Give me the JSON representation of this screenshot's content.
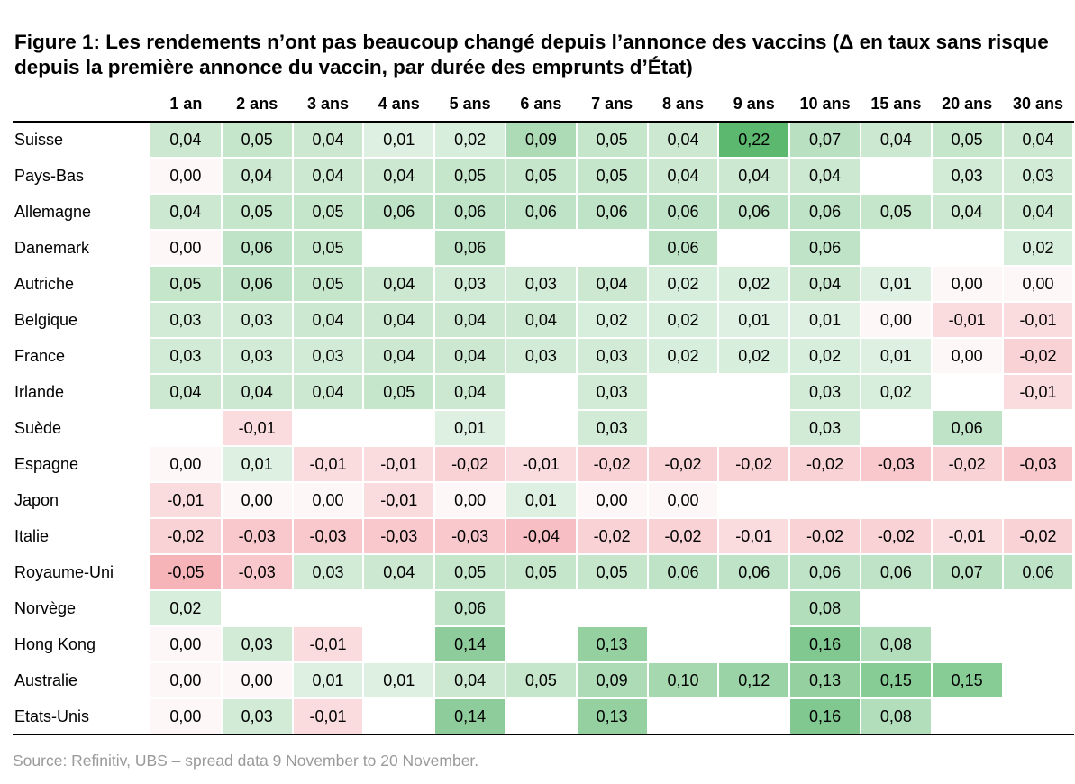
{
  "chart_data": {
    "type": "heatmap",
    "title": "Figure 1: Les rendements n’ont pas beaucoup changé depuis l’annonce des vaccins (Δ en taux sans risque depuis la première annonce du vaccin, par durée des emprunts d’État)",
    "source": "Source: Refinitiv, UBS – spread data 9 November to 20 November.",
    "columns": [
      "1 an",
      "2 ans",
      "3 ans",
      "4 ans",
      "5 ans",
      "6 ans",
      "7 ans",
      "8 ans",
      "9 ans",
      "10 ans",
      "15 ans",
      "20 ans",
      "30 ans"
    ],
    "rows": [
      {
        "label": "Suisse",
        "values": [
          0.04,
          0.05,
          0.04,
          0.01,
          0.02,
          0.09,
          0.05,
          0.04,
          0.22,
          0.07,
          0.04,
          0.05,
          0.04
        ]
      },
      {
        "label": "Pays-Bas",
        "values": [
          0.0,
          0.04,
          0.04,
          0.04,
          0.05,
          0.05,
          0.05,
          0.04,
          0.04,
          0.04,
          null,
          0.03,
          0.03
        ]
      },
      {
        "label": "Allemagne",
        "values": [
          0.04,
          0.05,
          0.05,
          0.06,
          0.06,
          0.06,
          0.06,
          0.06,
          0.06,
          0.06,
          0.05,
          0.04,
          0.04
        ]
      },
      {
        "label": "Danemark",
        "values": [
          0.0,
          0.06,
          0.05,
          null,
          0.06,
          null,
          null,
          0.06,
          null,
          0.06,
          null,
          null,
          0.02
        ]
      },
      {
        "label": "Autriche",
        "values": [
          0.05,
          0.06,
          0.05,
          0.04,
          0.03,
          0.03,
          0.04,
          0.02,
          0.02,
          0.04,
          0.01,
          0.0,
          0.0
        ]
      },
      {
        "label": "Belgique",
        "values": [
          0.03,
          0.03,
          0.04,
          0.04,
          0.04,
          0.04,
          0.02,
          0.02,
          0.01,
          0.01,
          0.0,
          -0.01,
          -0.01
        ]
      },
      {
        "label": "France",
        "values": [
          0.03,
          0.03,
          0.03,
          0.04,
          0.04,
          0.03,
          0.03,
          0.02,
          0.02,
          0.02,
          0.01,
          0.0,
          -0.02
        ]
      },
      {
        "label": "Irlande",
        "values": [
          0.04,
          0.04,
          0.04,
          0.05,
          0.04,
          null,
          0.03,
          null,
          null,
          0.03,
          0.02,
          null,
          -0.01
        ]
      },
      {
        "label": "Suède",
        "values": [
          null,
          -0.01,
          null,
          null,
          0.01,
          null,
          0.03,
          null,
          null,
          0.03,
          null,
          0.06,
          null
        ]
      },
      {
        "label": "Espagne",
        "values": [
          0.0,
          0.01,
          -0.01,
          -0.01,
          -0.02,
          -0.01,
          -0.02,
          -0.02,
          -0.02,
          -0.02,
          -0.03,
          -0.02,
          -0.03
        ]
      },
      {
        "label": "Japon",
        "values": [
          -0.01,
          0.0,
          0.0,
          -0.01,
          0.0,
          0.01,
          0.0,
          0.0,
          null,
          null,
          null,
          null,
          null
        ]
      },
      {
        "label": "Italie",
        "values": [
          -0.02,
          -0.03,
          -0.03,
          -0.03,
          -0.03,
          -0.04,
          -0.02,
          -0.02,
          -0.01,
          -0.02,
          -0.02,
          -0.01,
          -0.02
        ]
      },
      {
        "label": "Royaume-Uni",
        "values": [
          -0.05,
          -0.03,
          0.03,
          0.04,
          0.05,
          0.05,
          0.05,
          0.06,
          0.06,
          0.06,
          0.06,
          0.07,
          0.06
        ]
      },
      {
        "label": "Norvège",
        "values": [
          0.02,
          null,
          null,
          null,
          0.06,
          null,
          null,
          null,
          null,
          0.08,
          null,
          null,
          null
        ]
      },
      {
        "label": "Hong Kong",
        "values": [
          0.0,
          0.03,
          -0.01,
          null,
          0.14,
          null,
          0.13,
          null,
          null,
          0.16,
          0.08,
          null,
          null
        ]
      },
      {
        "label": "Australie",
        "values": [
          0.0,
          0.0,
          0.01,
          0.01,
          0.04,
          0.05,
          0.09,
          0.1,
          0.12,
          0.13,
          0.15,
          0.15,
          null
        ]
      },
      {
        "label": "Etats-Unis",
        "values": [
          0.0,
          0.03,
          -0.01,
          null,
          0.14,
          null,
          0.13,
          null,
          null,
          0.16,
          0.08,
          null,
          null
        ]
      }
    ],
    "color_scale": {
      "positive": "#5cb86f",
      "negative": "#f4a8ae",
      "zero": "#fdf7f7"
    }
  }
}
